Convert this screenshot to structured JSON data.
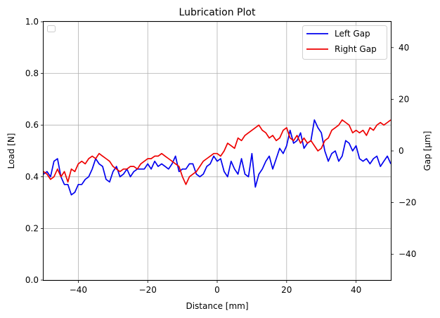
{
  "chart_data": {
    "type": "line",
    "title": "Lubrication Plot",
    "xlabel": "Distance [mm]",
    "ylabel_left": "Load [N]",
    "ylabel_right": "Gap [µm]",
    "xlim": [
      -50,
      50
    ],
    "ylim_left": [
      0.0,
      1.0
    ],
    "ylim_right": [
      -50,
      50
    ],
    "x_ticks": [
      -40,
      -20,
      0,
      20,
      40
    ],
    "x_tick_labels": [
      "−40",
      "−20",
      "0",
      "20",
      "40"
    ],
    "y_left_ticks": [
      0.0,
      0.2,
      0.4,
      0.6,
      0.8,
      1.0
    ],
    "y_left_tick_labels": [
      "0.0",
      "0.2",
      "0.4",
      "0.6",
      "0.8",
      "1.0"
    ],
    "y_right_ticks": [
      -40,
      -20,
      0,
      20,
      40
    ],
    "y_right_tick_labels": [
      "−40",
      "−20",
      "0",
      "20",
      "40"
    ],
    "grid": true,
    "legend_right": {
      "placement": "upper-right",
      "entries": [
        "Left Gap",
        "Right Gap"
      ]
    },
    "legend_left": {
      "placement": "upper-left",
      "entries": []
    },
    "series": [
      {
        "name": "Left Gap",
        "axis": "right",
        "color": "#0000ee",
        "x": [
          -50,
          -49,
          -48,
          -47,
          -46,
          -45,
          -44,
          -43,
          -42,
          -41,
          -40,
          -39,
          -38,
          -37,
          -36,
          -35,
          -34,
          -33,
          -32,
          -31,
          -30,
          -29,
          -28,
          -27,
          -26,
          -25,
          -24,
          -23,
          -22,
          -21,
          -20,
          -19,
          -18,
          -17,
          -16,
          -15,
          -14,
          -13,
          -12,
          -11,
          -10,
          -9,
          -8,
          -7,
          -6,
          -5,
          -4,
          -3,
          -2,
          -1,
          0,
          1,
          2,
          3,
          4,
          5,
          6,
          7,
          8,
          9,
          10,
          11,
          12,
          13,
          14,
          15,
          16,
          17,
          18,
          19,
          20,
          21,
          22,
          23,
          24,
          25,
          26,
          27,
          28,
          29,
          30,
          31,
          32,
          33,
          34,
          35,
          36,
          37,
          38,
          39,
          40,
          41,
          42,
          43,
          44,
          45,
          46,
          47,
          48,
          49,
          50
        ],
        "y": [
          -9,
          -8,
          -10,
          -4,
          -3,
          -10,
          -13,
          -13,
          -17,
          -16,
          -13,
          -13,
          -11,
          -10,
          -7,
          -3,
          -5,
          -6,
          -11,
          -12,
          -8,
          -6,
          -10,
          -9,
          -7,
          -10,
          -8,
          -7,
          -7,
          -7,
          -5,
          -7,
          -4,
          -6,
          -5,
          -6,
          -7,
          -5,
          -2,
          -8,
          -7,
          -7,
          -5,
          -5,
          -9,
          -10,
          -9,
          -6,
          -5,
          -2,
          -4,
          -3,
          -8,
          -10,
          -4,
          -7,
          -9,
          -3,
          -9,
          -10,
          -1,
          -14,
          -9,
          -7,
          -4,
          -2,
          -7,
          -3,
          1,
          -1,
          2,
          8,
          3,
          4,
          7,
          1,
          3,
          4,
          12,
          9,
          7,
          0,
          -4,
          -1,
          0,
          -4,
          -2,
          4,
          3,
          0,
          2,
          -3,
          -4,
          -3,
          -5,
          -3,
          -2,
          -6,
          -4,
          -2,
          -5
        ]
      },
      {
        "name": "Right Gap",
        "axis": "right",
        "color": "#ee0000",
        "x": [
          -50,
          -49,
          -48,
          -47,
          -46,
          -45,
          -44,
          -43,
          -42,
          -41,
          -40,
          -39,
          -38,
          -37,
          -36,
          -35,
          -34,
          -33,
          -32,
          -31,
          -30,
          -29,
          -28,
          -27,
          -26,
          -25,
          -24,
          -23,
          -22,
          -21,
          -20,
          -19,
          -18,
          -17,
          -16,
          -15,
          -14,
          -13,
          -12,
          -11,
          -10,
          -9,
          -8,
          -7,
          -6,
          -5,
          -4,
          -3,
          -2,
          -1,
          0,
          1,
          2,
          3,
          4,
          5,
          6,
          7,
          8,
          9,
          10,
          11,
          12,
          13,
          14,
          15,
          16,
          17,
          18,
          19,
          20,
          21,
          22,
          23,
          24,
          25,
          26,
          27,
          28,
          29,
          30,
          31,
          32,
          33,
          34,
          35,
          36,
          37,
          38,
          39,
          40,
          41,
          42,
          43,
          44,
          45,
          46,
          47,
          48,
          49,
          50
        ],
        "y": [
          -8,
          -9,
          -11,
          -10,
          -7,
          -10,
          -8,
          -12,
          -7,
          -8,
          -5,
          -4,
          -5,
          -3,
          -2,
          -3,
          -1,
          -2,
          -3,
          -4,
          -6,
          -7,
          -8,
          -7,
          -7,
          -6,
          -6,
          -7,
          -5,
          -4,
          -3,
          -3,
          -2,
          -2,
          -1,
          -2,
          -3,
          -4,
          -5,
          -6,
          -10,
          -13,
          -10,
          -9,
          -8,
          -6,
          -4,
          -3,
          -2,
          -1,
          -1,
          -2,
          0,
          3,
          2,
          1,
          5,
          4,
          6,
          7,
          8,
          9,
          10,
          8,
          7,
          5,
          6,
          4,
          5,
          8,
          9,
          5,
          4,
          6,
          3,
          5,
          3,
          4,
          2,
          0,
          1,
          4,
          5,
          8,
          9,
          10,
          12,
          11,
          10,
          7,
          8,
          7,
          8,
          6,
          9,
          8,
          10,
          11,
          10,
          11,
          12
        ]
      }
    ]
  }
}
